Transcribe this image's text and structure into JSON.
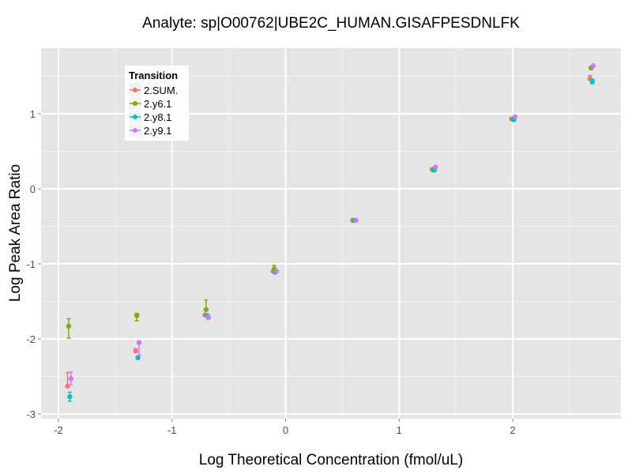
{
  "chart_data": {
    "type": "scatter",
    "title": "Analyte: sp|O00762|UBE2C_HUMAN.GISAFPESDNLFK",
    "xlabel": "Log Theoretical Concentration (fmol/uL)",
    "ylabel": "Log Peak Area Ratio",
    "xlim": [
      -2.15,
      2.95
    ],
    "ylim": [
      -3.05,
      1.85
    ],
    "x_ticks": [
      -2,
      -1,
      0,
      1,
      2
    ],
    "x_tick_labels": [
      "-2",
      "-1",
      "0",
      "1",
      "2"
    ],
    "y_ticks": [
      -3,
      -2,
      -1,
      0,
      1
    ],
    "y_tick_labels": [
      "-3",
      "-2",
      "-1",
      "0",
      "1"
    ],
    "grid": true,
    "legend": {
      "title": "Transition",
      "position": "inside-top-left",
      "entries": [
        "2.SUM.",
        "2.y6.1",
        "2.y8.1",
        "2.y9.1"
      ]
    },
    "series": [
      {
        "name": "2.SUM.",
        "color": "#F8766D",
        "points": [
          {
            "x": -1.92,
            "y": -2.63,
            "ymin": -2.64,
            "ymax": -2.45
          },
          {
            "x": -1.32,
            "y": -2.16,
            "ymin": -2.18,
            "ymax": -2.13
          },
          {
            "x": -0.71,
            "y": -1.68,
            "ymin": -1.69,
            "ymax": -1.67
          },
          {
            "x": -0.11,
            "y": -1.1,
            "ymin": -1.11,
            "ymax": -1.09
          },
          {
            "x": 0.59,
            "y": -0.42,
            "ymin": -0.43,
            "ymax": -0.41
          },
          {
            "x": 1.29,
            "y": 0.26,
            "ymin": 0.25,
            "ymax": 0.27
          },
          {
            "x": 1.99,
            "y": 0.93,
            "ymin": 0.92,
            "ymax": 0.94
          },
          {
            "x": 2.68,
            "y": 1.47,
            "ymin": 1.45,
            "ymax": 1.51
          }
        ]
      },
      {
        "name": "2.y6.1",
        "color": "#7CAE00",
        "points": [
          {
            "x": -1.91,
            "y": -1.83,
            "ymin": -1.99,
            "ymax": -1.73
          },
          {
            "x": -1.31,
            "y": -1.69,
            "ymin": -1.76,
            "ymax": -1.66
          },
          {
            "x": -0.7,
            "y": -1.61,
            "ymin": -1.61,
            "ymax": -1.48
          },
          {
            "x": -0.1,
            "y": -1.07,
            "ymin": -1.08,
            "ymax": -1.02
          },
          {
            "x": 0.6,
            "y": -0.42,
            "ymin": -0.43,
            "ymax": -0.41
          },
          {
            "x": 1.3,
            "y": 0.25,
            "ymin": 0.24,
            "ymax": 0.26
          },
          {
            "x": 2.0,
            "y": 0.93,
            "ymin": 0.92,
            "ymax": 0.94
          },
          {
            "x": 2.69,
            "y": 1.61,
            "ymin": 1.6,
            "ymax": 1.62
          }
        ]
      },
      {
        "name": "2.y8.1",
        "color": "#00BFC4",
        "points": [
          {
            "x": -1.9,
            "y": -2.77,
            "ymin": -2.83,
            "ymax": -2.71
          },
          {
            "x": -1.3,
            "y": -2.25,
            "ymin": -2.26,
            "ymax": -2.24
          },
          {
            "x": -0.69,
            "y": -1.69,
            "ymin": -1.7,
            "ymax": -1.68
          },
          {
            "x": -0.09,
            "y": -1.11,
            "ymin": -1.12,
            "ymax": -1.1
          },
          {
            "x": 0.61,
            "y": -0.42,
            "ymin": -0.43,
            "ymax": -0.41
          },
          {
            "x": 1.31,
            "y": 0.25,
            "ymin": 0.24,
            "ymax": 0.26
          },
          {
            "x": 2.01,
            "y": 0.92,
            "ymin": 0.91,
            "ymax": 0.93
          },
          {
            "x": 2.7,
            "y": 1.43,
            "ymin": 1.4,
            "ymax": 1.46
          }
        ]
      },
      {
        "name": "2.y9.1",
        "color": "#C77CFF",
        "points": [
          {
            "x": -1.89,
            "y": -2.53,
            "ymin": -2.61,
            "ymax": -2.44
          },
          {
            "x": -1.29,
            "y": -2.05,
            "ymin": -2.22,
            "ymax": -2.04
          },
          {
            "x": -0.68,
            "y": -1.71,
            "ymin": -1.74,
            "ymax": -1.69
          },
          {
            "x": -0.08,
            "y": -1.1,
            "ymin": -1.11,
            "ymax": -1.09
          },
          {
            "x": 0.62,
            "y": -0.42,
            "ymin": -0.43,
            "ymax": -0.41
          },
          {
            "x": 1.32,
            "y": 0.29,
            "ymin": 0.28,
            "ymax": 0.3
          },
          {
            "x": 2.02,
            "y": 0.96,
            "ymin": 0.95,
            "ymax": 0.97
          },
          {
            "x": 2.71,
            "y": 1.64,
            "ymin": 1.63,
            "ymax": 1.65
          }
        ]
      }
    ]
  },
  "style": {
    "panel_bg": "#E5E5E5",
    "grid_major": "#FFFFFF",
    "grid_minor": "#F2F2F2",
    "tick_color": "#7F7F7F"
  }
}
